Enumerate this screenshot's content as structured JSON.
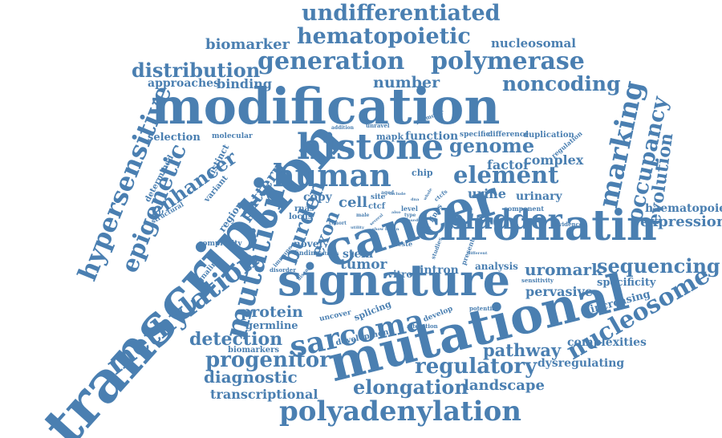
{
  "colors": {
    "word": "#4a7fb1",
    "background": "#ffffff"
  },
  "words": [
    "undifferentiated",
    "hematopoietic",
    "nucleosomal",
    "biomarker",
    "generation",
    "polymerase",
    "distribution",
    "approaches",
    "binding",
    "number",
    "noncoding",
    "modification",
    "transcription",
    "hypersensitive",
    "epigenetic",
    "histone",
    "genome",
    "human",
    "element",
    "cancer",
    "chromatin",
    "marking",
    "occupancy",
    "evolution",
    "bladder",
    "signature",
    "mutational",
    "mutation",
    "methylation",
    "enhancer",
    "burden",
    "exon",
    "sarcoma",
    "nucleosome",
    "sequencing",
    "expression",
    "haematopoietic",
    "uromark",
    "specificity",
    "pervasive",
    "increasing",
    "complexities",
    "pathway",
    "regulatory",
    "dysregulating",
    "landscape",
    "elongation",
    "polyadenylation",
    "transcriptional",
    "diagnostic",
    "progenitor",
    "biomarkers",
    "detection",
    "protein",
    "germline",
    "development",
    "tumor",
    "stem",
    "novel",
    "finding",
    "vitro",
    "intron",
    "analysis",
    "cell",
    "copy",
    "urine",
    "urinary",
    "factor",
    "complex",
    "function",
    "mapk",
    "specific",
    "difference",
    "duplication",
    "regulation",
    "promoter",
    "unravel",
    "addition",
    "selection",
    "molecular",
    "determined",
    "distinct",
    "variant",
    "region",
    "pattern",
    "structural",
    "complexity",
    "signaling",
    "locus",
    "rnas",
    "immune",
    "disorder",
    "disease",
    "introns",
    "splicing",
    "uncover",
    "develop",
    "alteration",
    "potential",
    "sensitivity",
    "evidence",
    "present",
    "component",
    "chip",
    "ctcf",
    "site",
    "level",
    "type",
    "lines",
    "whole",
    "aged",
    "include",
    "teste",
    "cohort",
    "male",
    "utility",
    "studies",
    "several",
    "based",
    "different",
    "blastn",
    "wide",
    "show",
    "ctcfs",
    "also",
    "dna"
  ]
}
